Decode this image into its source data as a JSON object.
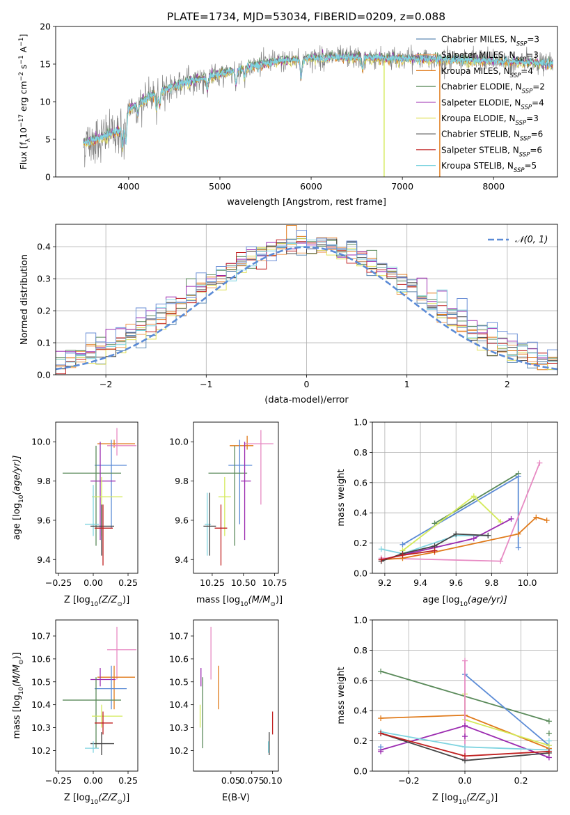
{
  "figure": {
    "title": "PLATE=1734, MJD=53034, FIBERID=0209, z=0.088"
  },
  "chart_data": [
    {
      "id": "spectrum",
      "type": "line",
      "xlabel": "wavelength [Angstrom, rest frame]",
      "ylabel_parts": [
        "Flux [f",
        "λ",
        "10",
        "−17",
        " erg cm",
        "−2",
        " s",
        "−1",
        " A",
        "−1",
        "]"
      ],
      "xlim": [
        3200,
        8700
      ],
      "ylim": [
        0,
        20
      ],
      "xticks": [
        4000,
        5000,
        6000,
        7000,
        8000
      ],
      "yticks": [
        0,
        5,
        10,
        15,
        20
      ],
      "grid": false,
      "legend_position": "right",
      "legend": [
        {
          "model": "Chabrier MILES, N",
          "sub": "SSP",
          "n": "=3",
          "color": "#5f8ab3"
        },
        {
          "model": "Salpeter MILES, N",
          "sub": "SSP",
          "n": "=3",
          "color": "#f0a15f"
        },
        {
          "model": "Kroupa MILES, N",
          "sub": "SSP",
          "n": "=4",
          "color": "#e07a1a"
        },
        {
          "model": "Chabrier ELODIE, N",
          "sub": "SSP",
          "n": "=2",
          "color": "#5a8a5a"
        },
        {
          "model": "Salpeter ELODIE, N",
          "sub": "SSP",
          "n": "=4",
          "color": "#9b2bb0"
        },
        {
          "model": "Kroupa ELODIE, N",
          "sub": "SSP",
          "n": "=3",
          "color": "#e0e05a"
        },
        {
          "model": "Chabrier STELIB, N",
          "sub": "SSP",
          "n": "=6",
          "color": "#444444"
        },
        {
          "model": "Salpeter STELIB, N",
          "sub": "SSP",
          "n": "=6",
          "color": "#c02020"
        },
        {
          "model": "Kroupa STELIB, N",
          "sub": "SSP",
          "n": "=5",
          "color": "#7fd4e0"
        }
      ],
      "continuum": {
        "x": [
          3500,
          3700,
          3900,
          4000,
          4300,
          4600,
          5000,
          5300,
          5600,
          6000,
          6400,
          6800,
          7200,
          7600,
          8000,
          8400,
          8650
        ],
        "y": [
          4.5,
          5.2,
          6.2,
          9.0,
          11.2,
          12.5,
          13.6,
          14.6,
          15.3,
          15.8,
          15.9,
          15.8,
          15.7,
          15.6,
          15.4,
          15.2,
          15.0
        ]
      },
      "data_color": "#808080",
      "model_color": "#7fd4e0"
    },
    {
      "id": "residuals",
      "type": "line",
      "xlabel": "(data-model)/error",
      "ylabel": "Normed distribution",
      "xlim": [
        -2.5,
        2.5
      ],
      "ylim": [
        0,
        0.47
      ],
      "xticks": [
        -2,
        -1,
        0,
        1,
        2
      ],
      "yticks": [
        0.0,
        0.1,
        0.2,
        0.3,
        0.4
      ],
      "grid": true,
      "legend_position": "top-right",
      "legend_label": "𝒩(0, 1)",
      "gaussian_color": "#5b8bd6",
      "bin_width": 0.1,
      "series_colors": [
        "#5f8ab3",
        "#f0a15f",
        "#e07a1a",
        "#5a8a5a",
        "#9b2bb0",
        "#e0e05a",
        "#444444",
        "#c02020",
        "#7fd4e0",
        "#6b8fd6"
      ]
    },
    {
      "id": "age-vs-Z",
      "type": "scatter",
      "xlabel_parts": [
        "Z [log",
        "10",
        "(Z/Z",
        "⊙",
        ")]"
      ],
      "ylabel_parts": [
        "age  [log",
        "10",
        "(age/yr)]"
      ],
      "xlim": [
        -0.27,
        0.32
      ],
      "ylim": [
        9.33,
        10.1
      ],
      "xticks": [
        -0.25,
        0.0,
        0.25
      ],
      "yticks": [
        9.4,
        9.6,
        9.8,
        10.0
      ],
      "grid": false,
      "points": [
        {
          "x": 0.15,
          "y": 9.99,
          "xerr": [
            0.12,
            0.15
          ],
          "yerr": [
            0.02,
            0.02
          ],
          "color": "#e07a1a"
        },
        {
          "x": 0.17,
          "y": 9.98,
          "xerr": [
            0.07,
            0.14
          ],
          "yerr": [
            0.05,
            0.09
          ],
          "color": "#e78ac3"
        },
        {
          "x": 0.13,
          "y": 9.88,
          "xerr": [
            0.12,
            0.11
          ],
          "yerr": [
            0.32,
            0.13
          ],
          "color": "#5b8bd6"
        },
        {
          "x": 0.02,
          "y": 9.84,
          "xerr": [
            0.24,
            0.18
          ],
          "yerr": [
            0.37,
            0.14
          ],
          "color": "#5a8a5a"
        },
        {
          "x": 0.05,
          "y": 9.8,
          "xerr": [
            0.07,
            0.11
          ],
          "yerr": [
            0.3,
            0.2
          ],
          "color": "#9b2bb0"
        },
        {
          "x": 0.06,
          "y": 9.72,
          "xerr": [
            0.07,
            0.15
          ],
          "yerr": [
            0.2,
            0.1
          ],
          "color": "#d4ea5a"
        },
        {
          "x": 0.0,
          "y": 9.58,
          "xerr": [
            0.06,
            0.04
          ],
          "yerr": [
            0.06,
            0.2
          ],
          "color": "#7fd4e0"
        },
        {
          "x": 0.06,
          "y": 9.57,
          "xerr": [
            0.08,
            0.09
          ],
          "yerr": [
            0.15,
            0.11
          ],
          "color": "#444444"
        },
        {
          "x": 0.07,
          "y": 9.56,
          "xerr": [
            0.06,
            0.07
          ],
          "yerr": [
            0.19,
            0.12
          ],
          "color": "#c02020"
        }
      ]
    },
    {
      "id": "age-vs-mass",
      "type": "scatter",
      "xlabel_parts": [
        "mass [log",
        "10",
        "(M/M",
        "⊙",
        ")]"
      ],
      "xlim": [
        10.1,
        10.78
      ],
      "ylim": [
        9.33,
        10.1
      ],
      "xticks": [
        10.25,
        10.5,
        10.75
      ],
      "yticks": [
        9.4,
        9.6,
        9.8,
        10.0
      ],
      "grid": false,
      "points": [
        {
          "x": 10.53,
          "y": 9.98,
          "xerr": [
            0.14,
            0.05
          ],
          "yerr": [
            0.02,
            0.05
          ],
          "color": "#e07a1a"
        },
        {
          "x": 10.64,
          "y": 9.99,
          "xerr": [
            0.13,
            0.1
          ],
          "yerr": [
            0.31,
            0.07
          ],
          "color": "#e78ac3"
        },
        {
          "x": 10.47,
          "y": 9.88,
          "xerr": [
            0.09,
            0.1
          ],
          "yerr": [
            0.3,
            0.13
          ],
          "color": "#5b8bd6"
        },
        {
          "x": 10.43,
          "y": 9.84,
          "xerr": [
            0.21,
            0.1
          ],
          "yerr": [
            0.37,
            0.14
          ],
          "color": "#5a8a5a"
        },
        {
          "x": 10.51,
          "y": 9.8,
          "xerr": [
            0.03,
            0.05
          ],
          "yerr": [
            0.3,
            0.2
          ],
          "color": "#9b2bb0"
        },
        {
          "x": 10.35,
          "y": 9.72,
          "xerr": [
            0.05,
            0.05
          ],
          "yerr": [
            0.2,
            0.1
          ],
          "color": "#d4ea5a"
        },
        {
          "x": 10.21,
          "y": 9.58,
          "xerr": [
            0.02,
            0.03
          ],
          "yerr": [
            0.16,
            0.16
          ],
          "color": "#7fd4e0"
        },
        {
          "x": 10.23,
          "y": 9.57,
          "xerr": [
            0.05,
            0.05
          ],
          "yerr": [
            0.15,
            0.17
          ],
          "color": "#444444"
        },
        {
          "x": 10.32,
          "y": 9.56,
          "xerr": [
            0.05,
            0.05
          ],
          "yerr": [
            0.19,
            0.12
          ],
          "color": "#c02020"
        }
      ]
    },
    {
      "id": "weight-vs-age",
      "type": "line",
      "xlabel_parts": [
        "age  [log",
        "10",
        "(age/yr)]"
      ],
      "ylabel": "mass weight",
      "xlim": [
        9.13,
        10.17
      ],
      "ylim": [
        0.0,
        1.0
      ],
      "xticks": [
        9.2,
        9.4,
        9.6,
        9.8,
        10.0
      ],
      "yticks": [
        0.0,
        0.2,
        0.4,
        0.6,
        0.8,
        1.0
      ],
      "grid": true,
      "series": [
        {
          "color": "#5a8a5a",
          "x": [
            9.48,
            9.95
          ],
          "y": [
            0.33,
            0.66
          ]
        },
        {
          "color": "#5b8bd6",
          "x": [
            9.3,
            9.95,
            9.95
          ],
          "y": [
            0.19,
            0.64,
            0.17
          ]
        },
        {
          "color": "#d4ea5a",
          "x": [
            9.3,
            9.7,
            9.85
          ],
          "y": [
            0.15,
            0.51,
            0.34
          ]
        },
        {
          "color": "#e78ac3",
          "x": [
            9.18,
            9.85,
            10.07
          ],
          "y": [
            0.1,
            0.08,
            0.73
          ]
        },
        {
          "color": "#e07a1a",
          "x": [
            9.18,
            9.3,
            9.48,
            9.95,
            10.05,
            10.11
          ],
          "y": [
            0.09,
            0.1,
            0.14,
            0.26,
            0.37,
            0.35
          ]
        },
        {
          "color": "#9b2bb0",
          "x": [
            9.18,
            9.48,
            9.7,
            9.91
          ],
          "y": [
            0.09,
            0.17,
            0.23,
            0.36
          ]
        },
        {
          "color": "#7fd4e0",
          "x": [
            9.18,
            9.3,
            9.6,
            9.78
          ],
          "y": [
            0.16,
            0.13,
            0.25,
            0.25
          ]
        },
        {
          "color": "#444444",
          "x": [
            9.18,
            9.3,
            9.48,
            9.6,
            9.78
          ],
          "y": [
            0.08,
            0.13,
            0.18,
            0.26,
            0.25
          ]
        },
        {
          "color": "#c02020",
          "x": [
            9.18,
            9.3,
            9.48
          ],
          "y": [
            0.09,
            0.12,
            0.15
          ]
        }
      ]
    },
    {
      "id": "mass-vs-Z",
      "type": "scatter",
      "xlabel_parts": [
        "Z [log",
        "10",
        "(Z/Z",
        "⊙",
        ")]"
      ],
      "ylabel_parts": [
        "mass [log",
        "10",
        "(M/M",
        "⊙",
        ")]"
      ],
      "xlim": [
        -0.27,
        0.32
      ],
      "ylim": [
        10.11,
        10.77
      ],
      "xticks": [
        -0.25,
        0.0,
        0.25
      ],
      "yticks": [
        10.2,
        10.3,
        10.4,
        10.5,
        10.6,
        10.7
      ],
      "grid": false,
      "points": [
        {
          "x": 0.17,
          "y": 10.64,
          "xerr": [
            0.07,
            0.14
          ],
          "yerr": [
            0.13,
            0.1
          ],
          "color": "#e78ac3"
        },
        {
          "x": 0.15,
          "y": 10.52,
          "xerr": [
            0.12,
            0.15
          ],
          "yerr": [
            0.14,
            0.05
          ],
          "color": "#e07a1a"
        },
        {
          "x": 0.05,
          "y": 10.51,
          "xerr": [
            0.07,
            0.11
          ],
          "yerr": [
            0.03,
            0.05
          ],
          "color": "#9b2bb0"
        },
        {
          "x": 0.13,
          "y": 10.47,
          "xerr": [
            0.12,
            0.11
          ],
          "yerr": [
            0.09,
            0.1
          ],
          "color": "#5b8bd6"
        },
        {
          "x": 0.02,
          "y": 10.42,
          "xerr": [
            0.24,
            0.18
          ],
          "yerr": [
            0.21,
            0.1
          ],
          "color": "#5a8a5a"
        },
        {
          "x": 0.06,
          "y": 10.35,
          "xerr": [
            0.07,
            0.15
          ],
          "yerr": [
            0.05,
            0.05
          ],
          "color": "#d4ea5a"
        },
        {
          "x": 0.07,
          "y": 10.32,
          "xerr": [
            0.06,
            0.07
          ],
          "yerr": [
            0.05,
            0.05
          ],
          "color": "#c02020"
        },
        {
          "x": 0.06,
          "y": 10.23,
          "xerr": [
            0.08,
            0.09
          ],
          "yerr": [
            0.05,
            0.05
          ],
          "color": "#444444"
        },
        {
          "x": 0.0,
          "y": 10.21,
          "xerr": [
            0.06,
            0.04
          ],
          "yerr": [
            0.02,
            0.03
          ],
          "color": "#7fd4e0"
        }
      ]
    },
    {
      "id": "mass-vs-ebv",
      "type": "scatter",
      "xlabel": "E(B-V)",
      "xlim": [
        0.005,
        0.107
      ],
      "ylim": [
        10.11,
        10.77
      ],
      "xticks": [
        0.05,
        0.075,
        0.1
      ],
      "xtick_labels": [
        "0.05",
        "0.075",
        "0.10"
      ],
      "yticks": [
        10.2,
        10.3,
        10.4,
        10.5,
        10.6,
        10.7
      ],
      "grid": false,
      "points": [
        {
          "x": 0.026,
          "y": 10.64,
          "yerr": [
            0.13,
            0.1
          ],
          "color": "#e78ac3"
        },
        {
          "x": 0.035,
          "y": 10.52,
          "yerr": [
            0.14,
            0.05
          ],
          "color": "#e07a1a"
        },
        {
          "x": 0.014,
          "y": 10.51,
          "yerr": [
            0.03,
            0.05
          ],
          "color": "#9b2bb0"
        },
        {
          "x": 0.016,
          "y": 10.42,
          "yerr": [
            0.21,
            0.1
          ],
          "color": "#5a8a5a"
        },
        {
          "x": 0.013,
          "y": 10.35,
          "yerr": [
            0.05,
            0.05
          ],
          "color": "#d4ea5a"
        },
        {
          "x": 0.1,
          "y": 10.32,
          "yerr": [
            0.05,
            0.05
          ],
          "color": "#c02020"
        },
        {
          "x": 0.096,
          "y": 10.23,
          "yerr": [
            0.05,
            0.05
          ],
          "color": "#444444"
        },
        {
          "x": 0.095,
          "y": 10.21,
          "yerr": [
            0.02,
            0.03
          ],
          "color": "#7fd4e0"
        }
      ]
    },
    {
      "id": "weight-vs-Z",
      "type": "line",
      "xlabel_parts": [
        "Z [log",
        "10",
        "(Z/Z",
        "⊙",
        ")]"
      ],
      "ylabel": "mass weight",
      "xlim": [
        -0.33,
        0.33
      ],
      "ylim": [
        0.0,
        1.0
      ],
      "xticks": [
        -0.2,
        0.0,
        0.2
      ],
      "xtick_labels": [
        "−0.2",
        "0.0",
        "0.2"
      ],
      "yticks": [
        0.0,
        0.2,
        0.4,
        0.6,
        0.8,
        1.0
      ],
      "grid": true,
      "series": [
        {
          "color": "#5a8a5a",
          "x": [
            -0.3,
            0.3
          ],
          "y": [
            0.66,
            0.33
          ]
        },
        {
          "color": "#5b8bd6",
          "x": [
            0.0,
            0.3
          ],
          "y": [
            0.64,
            0.17
          ]
        },
        {
          "color": "#e07a1a",
          "x": [
            -0.3,
            0.0,
            0.3
          ],
          "y": [
            0.35,
            0.37,
            0.15
          ]
        },
        {
          "color": "#d4ea5a",
          "x": [
            0.0,
            0.0,
            0.3
          ],
          "y": [
            0.51,
            0.34,
            0.17
          ]
        },
        {
          "color": "#e78ac3",
          "x": [
            0.0,
            0.0
          ],
          "y": [
            0.73,
            0.08
          ]
        },
        {
          "color": "#9b2bb0",
          "x": [
            -0.3,
            0.0,
            0.3
          ],
          "y": [
            0.14,
            0.3,
            0.09
          ]
        },
        {
          "color": "#7fd4e0",
          "x": [
            -0.3,
            0.0,
            0.3
          ],
          "y": [
            0.26,
            0.16,
            0.14
          ]
        },
        {
          "color": "#444444",
          "x": [
            -0.3,
            0.0,
            0.3
          ],
          "y": [
            0.25,
            0.07,
            0.12
          ]
        },
        {
          "color": "#c02020",
          "x": [
            -0.3,
            0.0,
            0.3
          ],
          "y": [
            0.25,
            0.1,
            0.13
          ]
        }
      ],
      "extra_markers": [
        {
          "x": -0.3,
          "y": 0.13,
          "color": "#9b2bb0"
        },
        {
          "x": 0.0,
          "y": 0.23,
          "color": "#9b2bb0"
        },
        {
          "x": 0.3,
          "y": 0.25,
          "color": "#5a8a5a"
        },
        {
          "x": 0.3,
          "y": 0.2,
          "color": "#7fd4e0"
        },
        {
          "x": -0.3,
          "y": 0.16,
          "color": "#5b8bd6"
        }
      ]
    }
  ]
}
